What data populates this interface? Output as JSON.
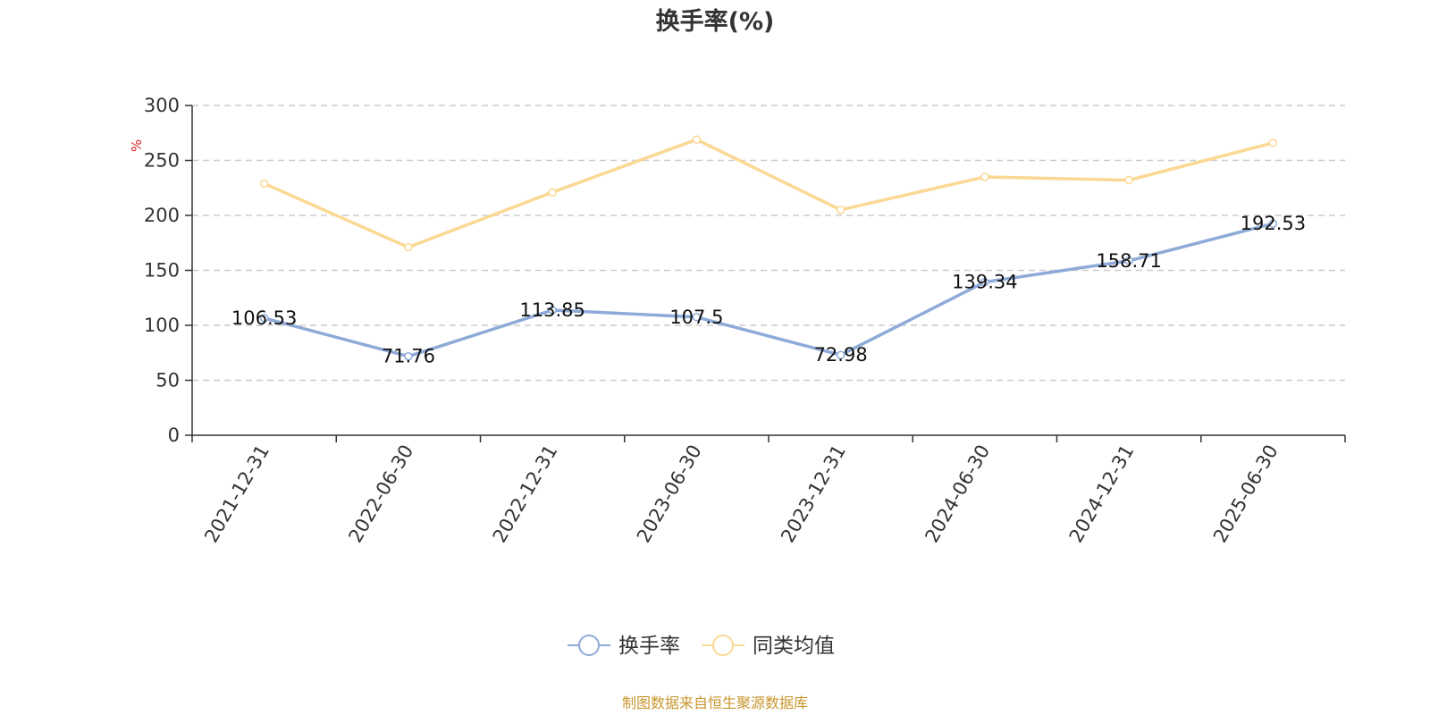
{
  "chart_data": {
    "type": "line",
    "title": "换手率(%)",
    "ylabel": "%",
    "ylim": [
      0,
      300
    ],
    "yticks": [
      0,
      50,
      100,
      150,
      200,
      250,
      300
    ],
    "grid": "dashed-horizontal",
    "legend_position": "bottom-center",
    "categories": [
      "2021-12-31",
      "2022-06-30",
      "2022-12-31",
      "2023-06-30",
      "2023-12-31",
      "2024-06-30",
      "2024-12-31",
      "2025-06-30"
    ],
    "series": [
      {
        "name": "换手率",
        "color": "#8eaad8",
        "values": [
          106.53,
          71.76,
          113.85,
          107.5,
          72.98,
          139.34,
          158.71,
          192.53
        ],
        "labels": [
          "106.53",
          "71.76",
          "113.85",
          "107.5",
          "72.98",
          "139.34",
          "158.71",
          "192.53"
        ]
      },
      {
        "name": "同类均值",
        "color": "#fbd893",
        "values": [
          229,
          171,
          221,
          269,
          205,
          235,
          232,
          266
        ]
      }
    ]
  },
  "source_text": "制图数据来自恒生聚源数据库",
  "colors": {
    "axis": "#333333",
    "grid": "#cccccc",
    "ylabel": "#e02020",
    "source": "#c8962e"
  }
}
